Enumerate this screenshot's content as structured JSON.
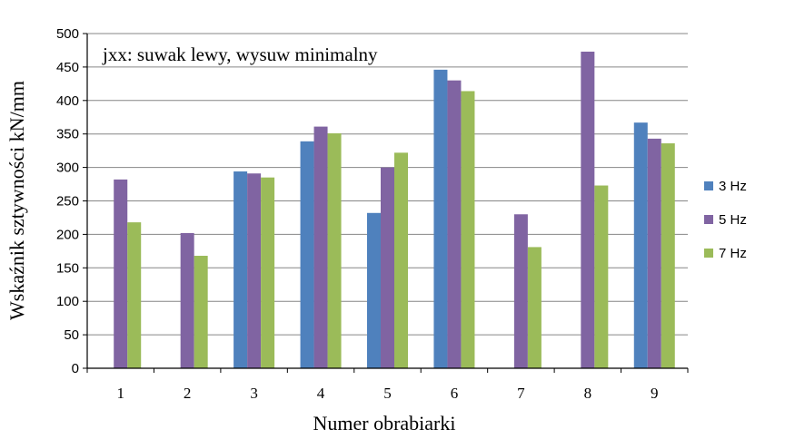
{
  "chart_data": {
    "type": "bar",
    "annotation": "jxx: suwak lewy, wysuw minimalny",
    "xlabel": "Numer obrabiarki",
    "ylabel": "Wskaźnik sztywności  kN/mm",
    "ylim": [
      0,
      500
    ],
    "yticks": [
      0,
      50,
      100,
      150,
      200,
      250,
      300,
      350,
      400,
      450,
      500
    ],
    "grid": true,
    "legend_position": "right",
    "categories": [
      "1",
      "2",
      "3",
      "4",
      "5",
      "6",
      "7",
      "8",
      "9"
    ],
    "series": [
      {
        "name": "3 Hz",
        "color": "#4f81bd",
        "values": [
          null,
          null,
          294,
          339,
          232,
          446,
          null,
          null,
          367
        ]
      },
      {
        "name": "5 Hz",
        "color": "#8064a2",
        "values": [
          282,
          202,
          291,
          361,
          300,
          430,
          230,
          473,
          343
        ]
      },
      {
        "name": "7 Hz",
        "color": "#9bbb59",
        "values": [
          218,
          168,
          285,
          351,
          322,
          414,
          181,
          273,
          336
        ]
      }
    ]
  }
}
